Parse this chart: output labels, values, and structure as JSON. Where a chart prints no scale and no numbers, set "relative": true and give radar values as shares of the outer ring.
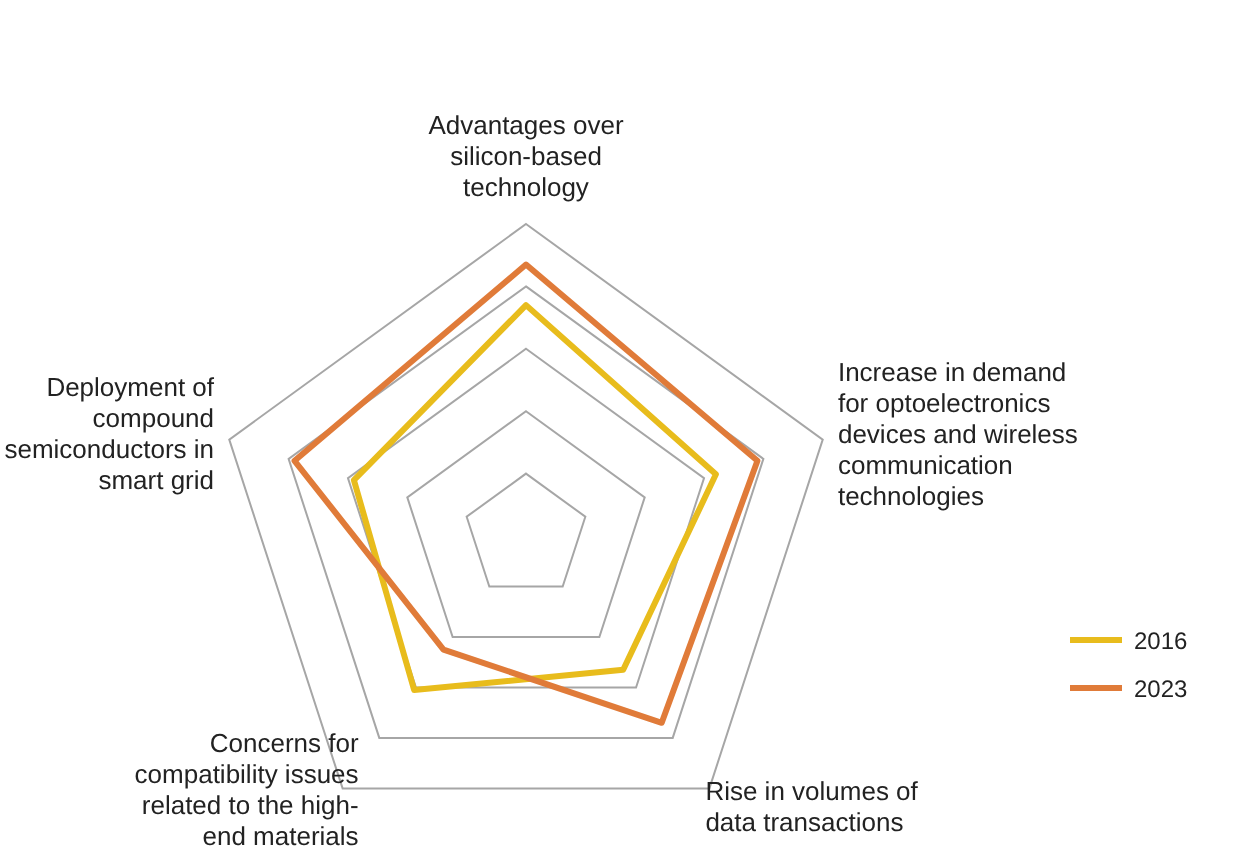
{
  "chart_data": {
    "type": "radar",
    "relative": true,
    "grid": true,
    "legend": "right",
    "line_style": "solid",
    "marker": "none",
    "categories": [
      "Advantages over silicon-based technology",
      "Increase in demand for optoelectronics devices and wireless communication technologies",
      "Rise in volumes of data transactions",
      "Concerns for compatibility issues related to the high-end materials",
      "Deployment of compound semiconductors in smart grid"
    ],
    "series": [
      {
        "name": "2016",
        "color": "#e8bc1c",
        "values": [
          0.74,
          0.64,
          0.53,
          0.61,
          0.58
        ]
      },
      {
        "name": "2023",
        "color": "#e07b39",
        "values": [
          0.87,
          0.78,
          0.74,
          0.45,
          0.78
        ]
      }
    ]
  }
}
